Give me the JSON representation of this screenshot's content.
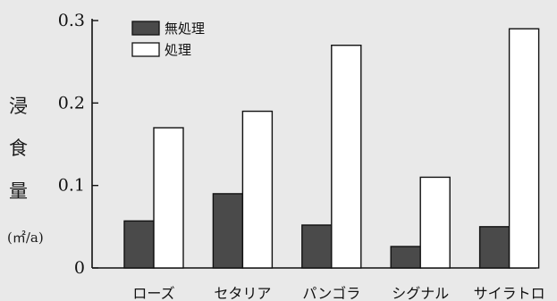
{
  "chart_data": {
    "type": "bar",
    "categories": [
      "ローズ",
      "セタリア",
      "パンゴラ",
      "シグナル",
      "サイラトロ"
    ],
    "series": [
      {
        "name": "無処理",
        "values": [
          0.057,
          0.09,
          0.052,
          0.026,
          0.05
        ],
        "color": "#4a4a4a"
      },
      {
        "name": "処理",
        "values": [
          0.17,
          0.19,
          0.27,
          0.11,
          0.29
        ],
        "color": "#ffffff"
      }
    ],
    "ylabel": [
      "浸",
      "食",
      "量"
    ],
    "yunit": "(㎡/a)",
    "yticks": [
      "0",
      "0.1",
      "0.2",
      "0.3"
    ],
    "ylim": [
      0,
      0.3
    ],
    "grid": false,
    "legend_position": "top-left"
  }
}
